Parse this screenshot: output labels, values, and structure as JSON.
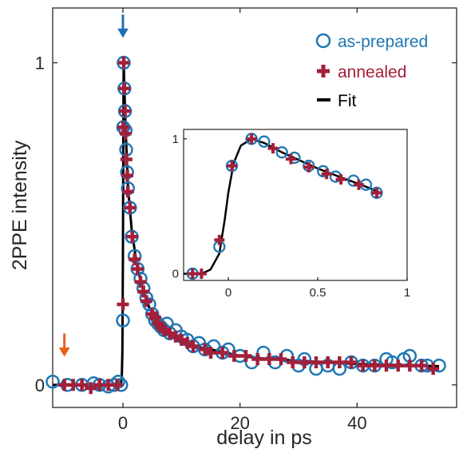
{
  "colors": {
    "as_prepared": "#1f77b4",
    "annealed": "#a31f3a",
    "fit": "#000000",
    "arrow_blue": "#1f6fb4",
    "arrow_orange": "#e8601c",
    "axis": "#262626"
  },
  "chart_data": [
    {
      "type": "scatter",
      "xlabel": "delay in ps",
      "ylabel": "2PPE intensity",
      "xlim": [
        -12,
        57
      ],
      "ylim": [
        -0.07,
        1.17
      ],
      "xticks": [
        0,
        20,
        40
      ],
      "xtick_labels": [
        "0",
        "20",
        "40"
      ],
      "yticks": [
        0,
        1
      ],
      "ytick_labels": [
        "0",
        "1"
      ],
      "legend": {
        "placement": "top-right",
        "entries": [
          {
            "label": "as-prepared",
            "marker": "circle",
            "color": "#1f77b4"
          },
          {
            "label": "annealed",
            "marker": "plus",
            "color": "#a31f3a"
          },
          {
            "label": "Fit",
            "marker": "line",
            "color": "#000000"
          }
        ]
      },
      "arrows": [
        {
          "x": 0,
          "y": 1.08,
          "color": "#1f6fb4"
        },
        {
          "x": -10,
          "y": 0.09,
          "color": "#e8601c"
        }
      ],
      "series": [
        {
          "name": "as-prepared",
          "marker": "circle",
          "points": [
            [
              -12,
              0.01
            ],
            [
              -9.5,
              0.0
            ],
            [
              -7,
              0.0
            ],
            [
              -5,
              0.005
            ],
            [
              -4,
              0.0
            ],
            [
              -2.5,
              -0.005
            ],
            [
              -1.5,
              0.0
            ],
            [
              -0.8,
              0.01
            ],
            [
              -0.3,
              0.0
            ],
            [
              0,
              0.2
            ],
            [
              0.05,
              0.8
            ],
            [
              0.13,
              1.0
            ],
            [
              0.25,
              0.92
            ],
            [
              0.35,
              0.85
            ],
            [
              0.45,
              0.79
            ],
            [
              0.55,
              0.73
            ],
            [
              0.7,
              0.66
            ],
            [
              0.85,
              0.61
            ],
            [
              1.2,
              0.55
            ],
            [
              1.5,
              0.46
            ],
            [
              2.0,
              0.4
            ],
            [
              2.5,
              0.36
            ],
            [
              3.0,
              0.33
            ],
            [
              3.5,
              0.3
            ],
            [
              4.0,
              0.27
            ],
            [
              4.5,
              0.25
            ],
            [
              5.0,
              0.22
            ],
            [
              5.5,
              0.2
            ],
            [
              6.0,
              0.19
            ],
            [
              6.5,
              0.18
            ],
            [
              7.0,
              0.17
            ],
            [
              7.5,
              0.19
            ],
            [
              8.0,
              0.16
            ],
            [
              9.0,
              0.17
            ],
            [
              10.0,
              0.15
            ],
            [
              11,
              0.14
            ],
            [
              12,
              0.12
            ],
            [
              13,
              0.13
            ],
            [
              14,
              0.11
            ],
            [
              15.5,
              0.12
            ],
            [
              17,
              0.1
            ],
            [
              18,
              0.11
            ],
            [
              20,
              0.09
            ],
            [
              22,
              0.07
            ],
            [
              24,
              0.1
            ],
            [
              26,
              0.07
            ],
            [
              28,
              0.09
            ],
            [
              30,
              0.06
            ],
            [
              31,
              0.08
            ],
            [
              33,
              0.05
            ],
            [
              35,
              0.06
            ],
            [
              37,
              0.05
            ],
            [
              39,
              0.07
            ],
            [
              41,
              0.06
            ],
            [
              43,
              0.06
            ],
            [
              45,
              0.08
            ],
            [
              46,
              0.07
            ],
            [
              48,
              0.08
            ],
            [
              49,
              0.09
            ],
            [
              51,
              0.06
            ],
            [
              52,
              0.06
            ],
            [
              54,
              0.06
            ]
          ]
        },
        {
          "name": "annealed",
          "marker": "plus",
          "points": [
            [
              -10,
              0.0
            ],
            [
              -8.5,
              0.0
            ],
            [
              -7,
              0.0
            ],
            [
              -5.5,
              -0.01
            ],
            [
              -4,
              0.0
            ],
            [
              -2.5,
              0.0
            ],
            [
              -1,
              0.0
            ],
            [
              0,
              0.25
            ],
            [
              0.05,
              0.8
            ],
            [
              0.13,
              1.0
            ],
            [
              0.25,
              0.92
            ],
            [
              0.35,
              0.85
            ],
            [
              0.45,
              0.78
            ],
            [
              0.6,
              0.7
            ],
            [
              0.75,
              0.65
            ],
            [
              0.85,
              0.6
            ],
            [
              1.2,
              0.55
            ],
            [
              1.6,
              0.46
            ],
            [
              2.0,
              0.39
            ],
            [
              2.5,
              0.36
            ],
            [
              3.0,
              0.32
            ],
            [
              3.5,
              0.29
            ],
            [
              4.0,
              0.26
            ],
            [
              5.0,
              0.22
            ],
            [
              5.5,
              0.21
            ],
            [
              6.0,
              0.19
            ],
            [
              6.5,
              0.18
            ],
            [
              7.0,
              0.17
            ],
            [
              8.0,
              0.16
            ],
            [
              9.0,
              0.15
            ],
            [
              10.0,
              0.14
            ],
            [
              11,
              0.13
            ],
            [
              12,
              0.12
            ],
            [
              14,
              0.11
            ],
            [
              15,
              0.1
            ],
            [
              17,
              0.1
            ],
            [
              19,
              0.09
            ],
            [
              21,
              0.09
            ],
            [
              23,
              0.08
            ],
            [
              25,
              0.08
            ],
            [
              27,
              0.08
            ],
            [
              29,
              0.07
            ],
            [
              31,
              0.07
            ],
            [
              33,
              0.07
            ],
            [
              35,
              0.07
            ],
            [
              37,
              0.07
            ],
            [
              39,
              0.07
            ],
            [
              41,
              0.06
            ],
            [
              43,
              0.06
            ],
            [
              45,
              0.06
            ],
            [
              47,
              0.06
            ],
            [
              49,
              0.06
            ],
            [
              51,
              0.06
            ],
            [
              53,
              0.05
            ]
          ]
        },
        {
          "name": "Fit",
          "marker": "line",
          "points": [
            [
              -12,
              0.0
            ],
            [
              -0.4,
              0.0
            ],
            [
              -0.2,
              0.02
            ],
            [
              -0.1,
              0.1
            ],
            [
              0,
              0.4
            ],
            [
              0.05,
              0.7
            ],
            [
              0.1,
              0.93
            ],
            [
              0.13,
              1.0
            ],
            [
              0.25,
              0.92
            ],
            [
              0.45,
              0.8
            ],
            [
              0.85,
              0.62
            ],
            [
              1.5,
              0.48
            ],
            [
              2.5,
              0.36
            ],
            [
              3.5,
              0.29
            ],
            [
              4.5,
              0.24
            ],
            [
              6,
              0.19
            ],
            [
              8,
              0.16
            ],
            [
              10,
              0.14
            ],
            [
              12,
              0.12
            ],
            [
              15,
              0.11
            ],
            [
              20,
              0.09
            ],
            [
              25,
              0.08
            ],
            [
              30,
              0.075
            ],
            [
              35,
              0.07
            ],
            [
              40,
              0.065
            ],
            [
              45,
              0.063
            ],
            [
              50,
              0.06
            ],
            [
              54,
              0.058
            ]
          ]
        }
      ]
    },
    {
      "type": "scatter",
      "inset": true,
      "xlim": [
        -0.25,
        1.0
      ],
      "ylim": [
        -0.05,
        1.07
      ],
      "xticks": [
        0,
        0.5,
        1
      ],
      "xtick_labels": [
        "0",
        "0.5",
        "1"
      ],
      "yticks": [
        0,
        1
      ],
      "ytick_labels": [
        "0",
        "1"
      ],
      "series": [
        {
          "name": "as-prepared",
          "marker": "circle",
          "points": [
            [
              -0.2,
              0.0
            ],
            [
              -0.05,
              0.2
            ],
            [
              0.02,
              0.8
            ],
            [
              0.13,
              1.0
            ],
            [
              0.2,
              0.98
            ],
            [
              0.3,
              0.9
            ],
            [
              0.37,
              0.86
            ],
            [
              0.45,
              0.8
            ],
            [
              0.53,
              0.76
            ],
            [
              0.6,
              0.72
            ],
            [
              0.7,
              0.69
            ],
            [
              0.77,
              0.66
            ],
            [
              0.83,
              0.6
            ]
          ]
        },
        {
          "name": "annealed",
          "marker": "plus",
          "points": [
            [
              -0.2,
              0.0
            ],
            [
              -0.15,
              0.0
            ],
            [
              -0.05,
              0.25
            ],
            [
              0.02,
              0.8
            ],
            [
              0.13,
              1.0
            ],
            [
              0.25,
              0.93
            ],
            [
              0.35,
              0.85
            ],
            [
              0.45,
              0.79
            ],
            [
              0.55,
              0.74
            ],
            [
              0.63,
              0.7
            ],
            [
              0.73,
              0.66
            ],
            [
              0.83,
              0.6
            ]
          ]
        },
        {
          "name": "Fit",
          "marker": "line",
          "points": [
            [
              -0.25,
              0.0
            ],
            [
              -0.15,
              0.0
            ],
            [
              -0.1,
              0.03
            ],
            [
              -0.05,
              0.15
            ],
            [
              -0.02,
              0.4
            ],
            [
              0.0,
              0.6
            ],
            [
              0.03,
              0.82
            ],
            [
              0.07,
              0.95
            ],
            [
              0.13,
              1.0
            ],
            [
              0.2,
              0.97
            ],
            [
              0.3,
              0.9
            ],
            [
              0.4,
              0.84
            ],
            [
              0.5,
              0.78
            ],
            [
              0.6,
              0.73
            ],
            [
              0.7,
              0.68
            ],
            [
              0.8,
              0.63
            ],
            [
              0.85,
              0.6
            ]
          ]
        }
      ]
    }
  ]
}
